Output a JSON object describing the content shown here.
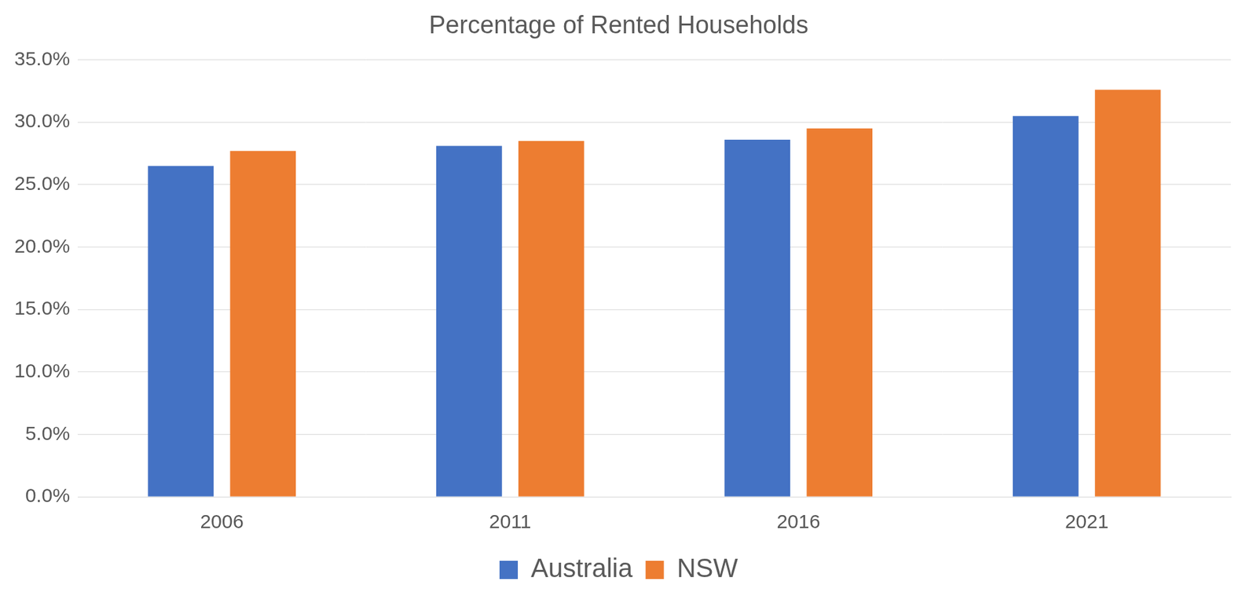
{
  "chart_data": {
    "type": "bar",
    "title": "Percentage of Rented Households",
    "categories": [
      "2006",
      "2011",
      "2016",
      "2021"
    ],
    "series": [
      {
        "name": "Australia",
        "color": "#4472c4",
        "values": [
          26.5,
          28.1,
          28.6,
          30.5
        ]
      },
      {
        "name": "NSW",
        "color": "#ed7d31",
        "values": [
          27.7,
          28.5,
          29.5,
          32.6
        ]
      }
    ],
    "ylim": [
      0,
      35
    ],
    "yticks": [
      {
        "value": 0,
        "label": "0.0%"
      },
      {
        "value": 5,
        "label": "5.0%"
      },
      {
        "value": 10,
        "label": "10.0%"
      },
      {
        "value": 15,
        "label": "15.0%"
      },
      {
        "value": 20,
        "label": "20.0%"
      },
      {
        "value": 25,
        "label": "25.0%"
      },
      {
        "value": 30,
        "label": "30.0%"
      },
      {
        "value": 35,
        "label": "35.0%"
      }
    ],
    "grid": true,
    "legend": "bottom"
  }
}
